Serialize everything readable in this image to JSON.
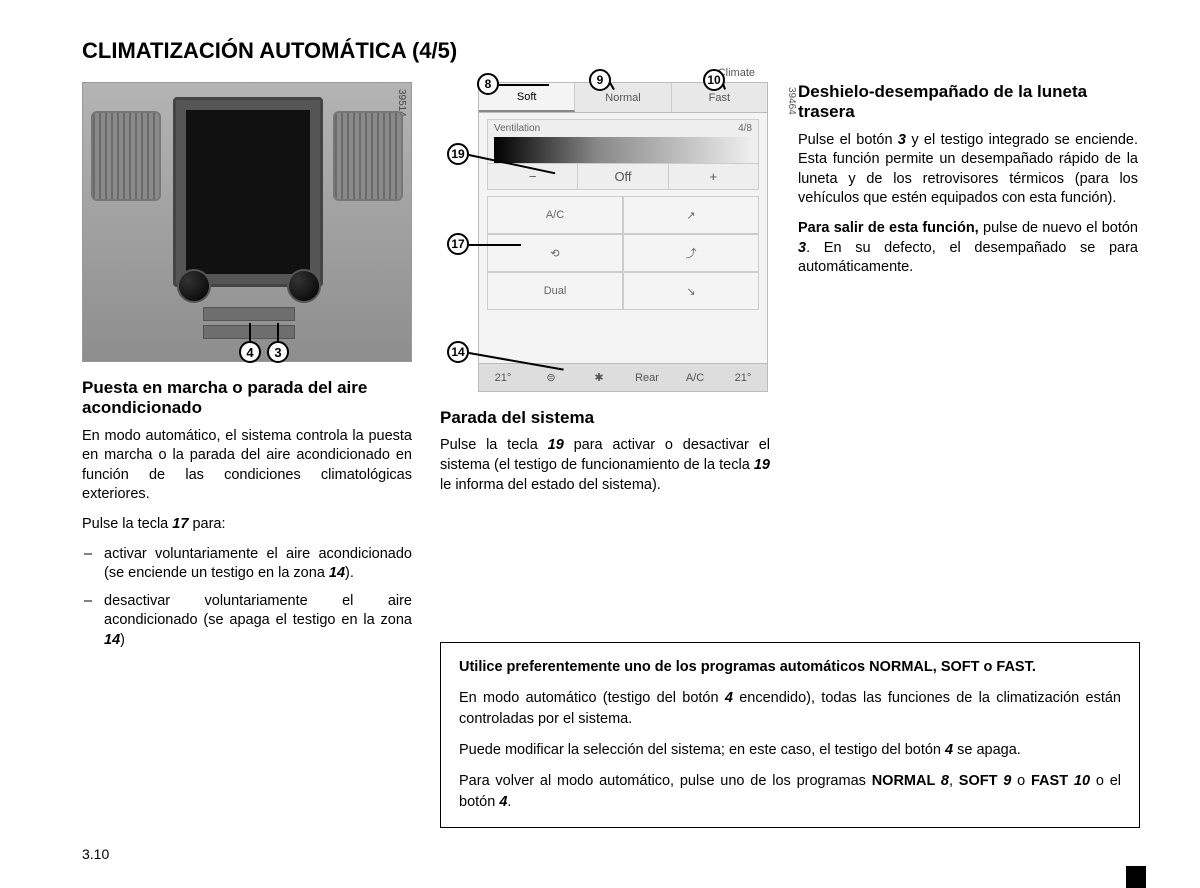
{
  "title": "CLIMATIZACIÓN AUTOMÁTICA (4/5)",
  "pagenum": "3.10",
  "fig1": {
    "code": "39514",
    "callouts": {
      "c4": "4",
      "c3": "3"
    }
  },
  "fig2": {
    "code": "39464",
    "header": "Climate",
    "tabs": {
      "soft": "Soft",
      "normal": "Normal",
      "fast": "Fast"
    },
    "vent_label": "Ventilation",
    "vent_count": "4/8",
    "minus": "−",
    "off": "Off",
    "plus": "+",
    "cells": {
      "ac": "A/C",
      "recirc": "⟲",
      "dual": "Dual",
      "air1": "↗",
      "air2": "⤴",
      "air3": "↘"
    },
    "bottom": {
      "tl": "21°",
      "rear": "Rear",
      "ac2": "A/C",
      "tr": "21°",
      "fan": "✱",
      "ico": "⊜"
    },
    "callouts": {
      "c8": "8",
      "c9": "9",
      "c10": "10",
      "c19": "19",
      "c17": "17",
      "c14": "14"
    }
  },
  "col1": {
    "h": "Puesta en marcha o parada del aire acondicionado",
    "p1a": "En modo automático, el sistema controla la puesta en marcha o la parada del aire acondicionado en función de las condiciones climatológicas exteriores.",
    "p2a": "Pulse la tecla ",
    "p2k": "17",
    "p2b": " para:",
    "li1a": "activar voluntariamente el aire acondicionado (se enciende un testigo en la zona ",
    "li1k": "14",
    "li1b": ").",
    "li2a": "desactivar voluntariamente el aire acondicionado (se apaga el testigo en la zona ",
    "li2k": "14",
    "li2b": ")"
  },
  "col2": {
    "h": "Parada del sistema",
    "p1a": "Pulse la tecla ",
    "p1k1": "19",
    "p1b": " para activar o desactivar el sistema (el testigo de funcionamiento de la tecla ",
    "p1k2": "19",
    "p1c": " le informa del estado del sistema)."
  },
  "col3": {
    "h": "Deshielo-desempañado de la luneta trasera",
    "p1a": "Pulse el botón ",
    "p1k": "3",
    "p1b": " y el testigo integrado se enciende. Esta función permite un desempañado rápido de la luneta y de los retrovisores térmicos (para los vehículos que estén equipados con esta función).",
    "p2lead": "Para salir de esta función,",
    "p2a": " pulse de nuevo el botón ",
    "p2k": "3",
    "p2b": ". En su defecto, el desempañado se para automáticamente."
  },
  "advice": {
    "p1a": "Utilice preferentemente uno de los programas automáticos  NORMAL, SOFT o FAST.",
    "p2a": "En modo automático (testigo del botón ",
    "p2k": "4",
    "p2b": " encendido), todas las funciones de la climatización están controladas por el sistema.",
    "p3a": "Puede modificar la selección del sistema; en este caso, el testigo del botón ",
    "p3k": "4",
    "p3b": " se apaga.",
    "p4a": "Para volver al modo automático, pulse uno de los programas ",
    "p4n": "NORMAL ",
    "p4k8": "8",
    "p4c1": ", ",
    "p4s": "SOFT ",
    "p4k9": "9",
    "p4c2": " o ",
    "p4f": "FAST ",
    "p4k10": "10",
    "p4c3": " o el botón ",
    "p4k4": "4",
    "p4end": "."
  }
}
